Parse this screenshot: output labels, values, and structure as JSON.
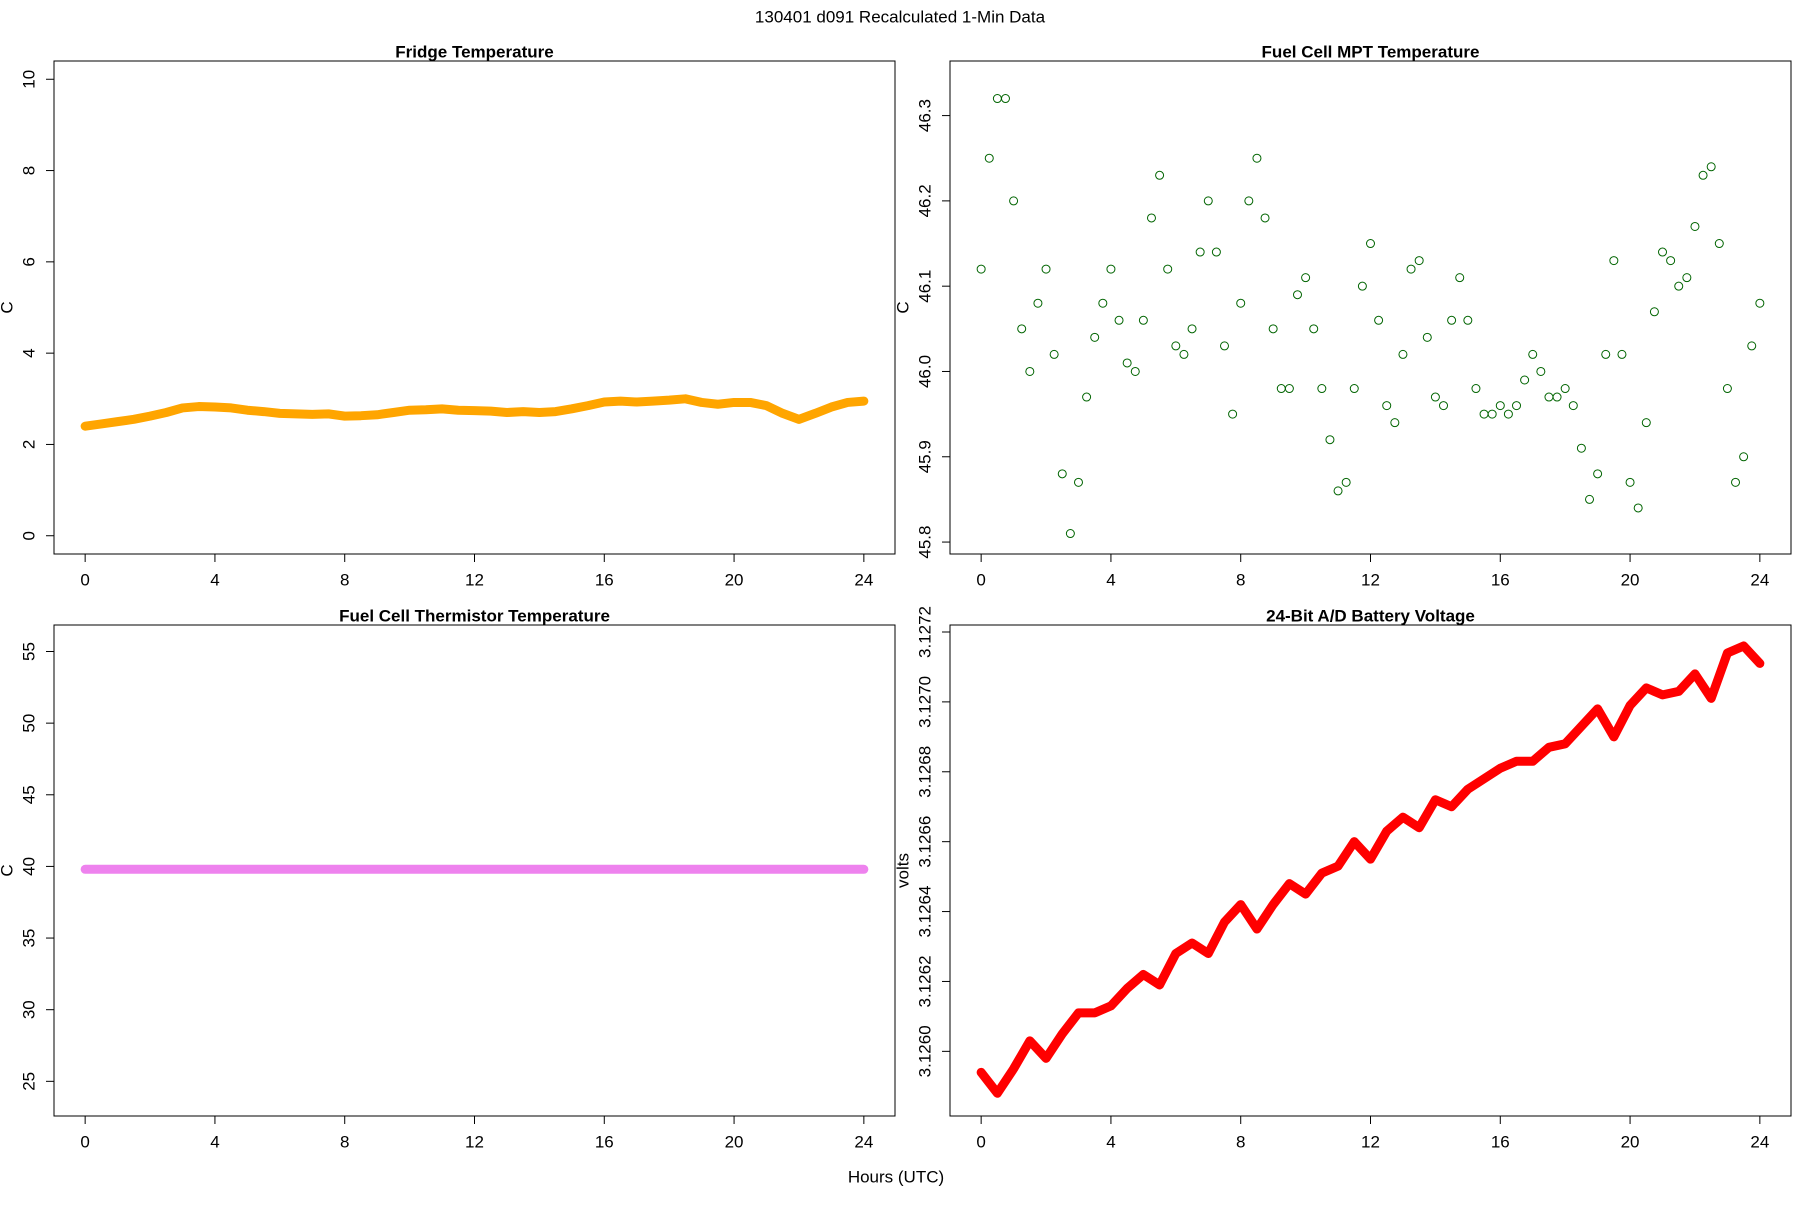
{
  "title": "130401   d091   Recalculated 1-Min Data",
  "xlabel": "Hours (UTC)",
  "chart_data": [
    {
      "type": "line",
      "title": "Fridge Temperature",
      "ylabel": "C",
      "color": "#ffa500",
      "x": [
        0,
        0.5,
        1,
        1.5,
        2,
        2.5,
        3,
        3.5,
        4,
        4.5,
        5,
        5.5,
        6,
        6.5,
        7,
        7.5,
        8,
        8.5,
        9,
        9.5,
        10,
        10.5,
        11,
        11.5,
        12,
        12.5,
        13,
        13.5,
        14,
        14.5,
        15,
        15.5,
        16,
        16.5,
        17,
        17.5,
        18,
        18.5,
        19,
        19.5,
        20,
        20.5,
        21,
        21.5,
        22,
        22.5,
        23,
        23.5,
        24
      ],
      "values": [
        2.4,
        2.45,
        2.5,
        2.55,
        2.62,
        2.7,
        2.8,
        2.83,
        2.82,
        2.8,
        2.75,
        2.72,
        2.68,
        2.67,
        2.66,
        2.67,
        2.62,
        2.63,
        2.65,
        2.7,
        2.75,
        2.76,
        2.78,
        2.75,
        2.74,
        2.73,
        2.7,
        2.72,
        2.7,
        2.72,
        2.78,
        2.85,
        2.93,
        2.95,
        2.93,
        2.95,
        2.97,
        3.0,
        2.92,
        2.88,
        2.92,
        2.92,
        2.85,
        2.68,
        2.55,
        2.68,
        2.82,
        2.92,
        2.95
      ],
      "xlim": [
        -0.96,
        24.96
      ],
      "xticks": [
        0,
        4,
        8,
        12,
        16,
        20,
        24
      ],
      "ylim": [
        -0.4,
        10.4
      ],
      "yticks": [
        0,
        2,
        4,
        6,
        8,
        10
      ]
    },
    {
      "type": "scatter",
      "title": "Fuel Cell MPT Temperature",
      "ylabel": "C",
      "color": "#006400",
      "x": [
        0,
        0.25,
        0.5,
        0.75,
        1,
        1.25,
        1.5,
        1.75,
        2,
        2.25,
        2.5,
        2.75,
        3,
        3.25,
        3.5,
        3.75,
        4,
        4.25,
        4.5,
        4.75,
        5,
        5.25,
        5.5,
        5.75,
        6,
        6.25,
        6.5,
        6.75,
        7,
        7.25,
        7.5,
        7.75,
        8,
        8.25,
        8.5,
        8.75,
        9,
        9.25,
        9.5,
        9.75,
        10,
        10.25,
        10.5,
        10.75,
        11,
        11.25,
        11.5,
        11.75,
        12,
        12.25,
        12.5,
        12.75,
        13,
        13.25,
        13.5,
        13.75,
        14,
        14.25,
        14.5,
        14.75,
        15,
        15.25,
        15.5,
        15.75,
        16,
        16.25,
        16.5,
        16.75,
        17,
        17.25,
        17.5,
        17.75,
        18,
        18.25,
        18.5,
        18.75,
        19,
        19.25,
        19.5,
        19.75,
        20,
        20.25,
        20.5,
        20.75,
        21,
        21.25,
        21.5,
        21.75,
        22,
        22.25,
        22.5,
        22.75,
        23,
        23.25,
        23.5,
        23.75,
        24
      ],
      "values": [
        46.12,
        46.25,
        46.32,
        46.32,
        46.2,
        46.05,
        46.0,
        46.08,
        46.12,
        46.02,
        45.88,
        45.81,
        45.87,
        45.97,
        46.04,
        46.08,
        46.12,
        46.06,
        46.01,
        46.0,
        46.06,
        46.18,
        46.23,
        46.12,
        46.03,
        46.02,
        46.05,
        46.14,
        46.2,
        46.14,
        46.03,
        45.95,
        46.08,
        46.2,
        46.25,
        46.18,
        46.05,
        45.98,
        45.98,
        46.09,
        46.11,
        46.05,
        45.98,
        45.92,
        45.86,
        45.87,
        45.98,
        46.1,
        46.15,
        46.06,
        45.96,
        45.94,
        46.02,
        46.12,
        46.13,
        46.04,
        45.97,
        45.96,
        46.06,
        46.11,
        46.06,
        45.98,
        45.95,
        45.95,
        45.96,
        45.95,
        45.96,
        45.99,
        46.02,
        46.0,
        45.97,
        45.97,
        45.98,
        45.96,
        45.91,
        45.85,
        45.88,
        46.02,
        46.13,
        46.02,
        45.87,
        45.84,
        45.94,
        46.07,
        46.14,
        46.13,
        46.1,
        46.11,
        46.17,
        46.23,
        46.24,
        46.15,
        45.98,
        45.87,
        45.9,
        46.03,
        46.08
      ],
      "xlim": [
        -0.96,
        24.96
      ],
      "xticks": [
        0,
        4,
        8,
        12,
        16,
        20,
        24
      ],
      "ylim": [
        45.786,
        46.364
      ],
      "yticks": [
        45.8,
        45.9,
        {
          "value": 46,
          "label": "46.0"
        },
        46.1,
        46.2,
        46.3
      ]
    },
    {
      "type": "line",
      "title": "Fuel Cell Thermistor Temperature",
      "ylabel": "C",
      "color": "#ee82ee",
      "x": [
        0,
        0.5,
        1,
        1.5,
        2,
        2.5,
        3,
        3.5,
        4,
        4.5,
        5,
        5.5,
        6,
        6.5,
        7,
        7.5,
        8,
        8.5,
        9,
        9.5,
        10,
        10.5,
        11,
        11.5,
        12,
        12.5,
        13,
        13.5,
        14,
        14.5,
        15,
        15.5,
        16,
        16.5,
        17,
        17.5,
        18,
        18.5,
        19,
        19.5,
        20,
        20.5,
        21,
        21.5,
        22,
        22.5,
        23,
        23.5,
        24
      ],
      "values": [
        39.8,
        39.8,
        39.8,
        39.8,
        39.8,
        39.8,
        39.8,
        39.8,
        39.8,
        39.8,
        39.8,
        39.8,
        39.8,
        39.8,
        39.8,
        39.8,
        39.8,
        39.8,
        39.8,
        39.8,
        39.8,
        39.8,
        39.8,
        39.8,
        39.8,
        39.8,
        39.8,
        39.8,
        39.8,
        39.8,
        39.8,
        39.8,
        39.8,
        39.8,
        39.8,
        39.8,
        39.8,
        39.8,
        39.8,
        39.8,
        39.8,
        39.8,
        39.8,
        39.8,
        39.8,
        39.8,
        39.8,
        39.8,
        39.8
      ],
      "xlim": [
        -0.96,
        24.96
      ],
      "xticks": [
        0,
        4,
        8,
        12,
        16,
        20,
        24
      ],
      "ylim": [
        22.58,
        56.85
      ],
      "yticks": [
        25,
        30,
        35,
        40,
        45,
        50,
        55
      ]
    },
    {
      "type": "line",
      "title": "24-Bit A/D Battery Voltage",
      "ylabel": "volts",
      "color": "#ff0000",
      "x": [
        0,
        0.5,
        1,
        1.5,
        2,
        2.5,
        3,
        3.5,
        4,
        4.5,
        5,
        5.5,
        6,
        6.5,
        7,
        7.5,
        8,
        8.5,
        9,
        9.5,
        10,
        10.5,
        11,
        11.5,
        12,
        12.5,
        13,
        13.5,
        14,
        14.5,
        15,
        15.5,
        16,
        16.5,
        17,
        17.5,
        18,
        18.5,
        19,
        19.5,
        20,
        20.5,
        21,
        21.5,
        22,
        22.5,
        23,
        23.5,
        24
      ],
      "values": [
        3.12594,
        3.12588,
        3.12595,
        3.12603,
        3.12598,
        3.12605,
        3.12611,
        3.12611,
        3.12613,
        3.12618,
        3.12622,
        3.12619,
        3.12628,
        3.12631,
        3.12628,
        3.12637,
        3.12642,
        3.12635,
        3.12642,
        3.12648,
        3.12645,
        3.12651,
        3.12653,
        3.1266,
        3.12655,
        3.12663,
        3.12667,
        3.12664,
        3.12672,
        3.1267,
        3.12675,
        3.12678,
        3.12681,
        3.12683,
        3.12683,
        3.12687,
        3.12688,
        3.12693,
        3.12698,
        3.1269,
        3.12699,
        3.12704,
        3.12702,
        3.12703,
        3.12708,
        3.12701,
        3.12714,
        3.12716,
        3.12711
      ],
      "xlim": [
        -0.96,
        24.96
      ],
      "xticks": [
        0,
        4,
        8,
        12,
        16,
        20,
        24
      ],
      "ylim": [
        3.125815,
        3.12722
      ],
      "yticks": [
        {
          "value": 3.126,
          "label": "3.1260"
        },
        3.1262,
        3.1264,
        3.1266,
        3.1268,
        {
          "value": 3.127,
          "label": "3.1270"
        },
        3.1272
      ]
    }
  ]
}
